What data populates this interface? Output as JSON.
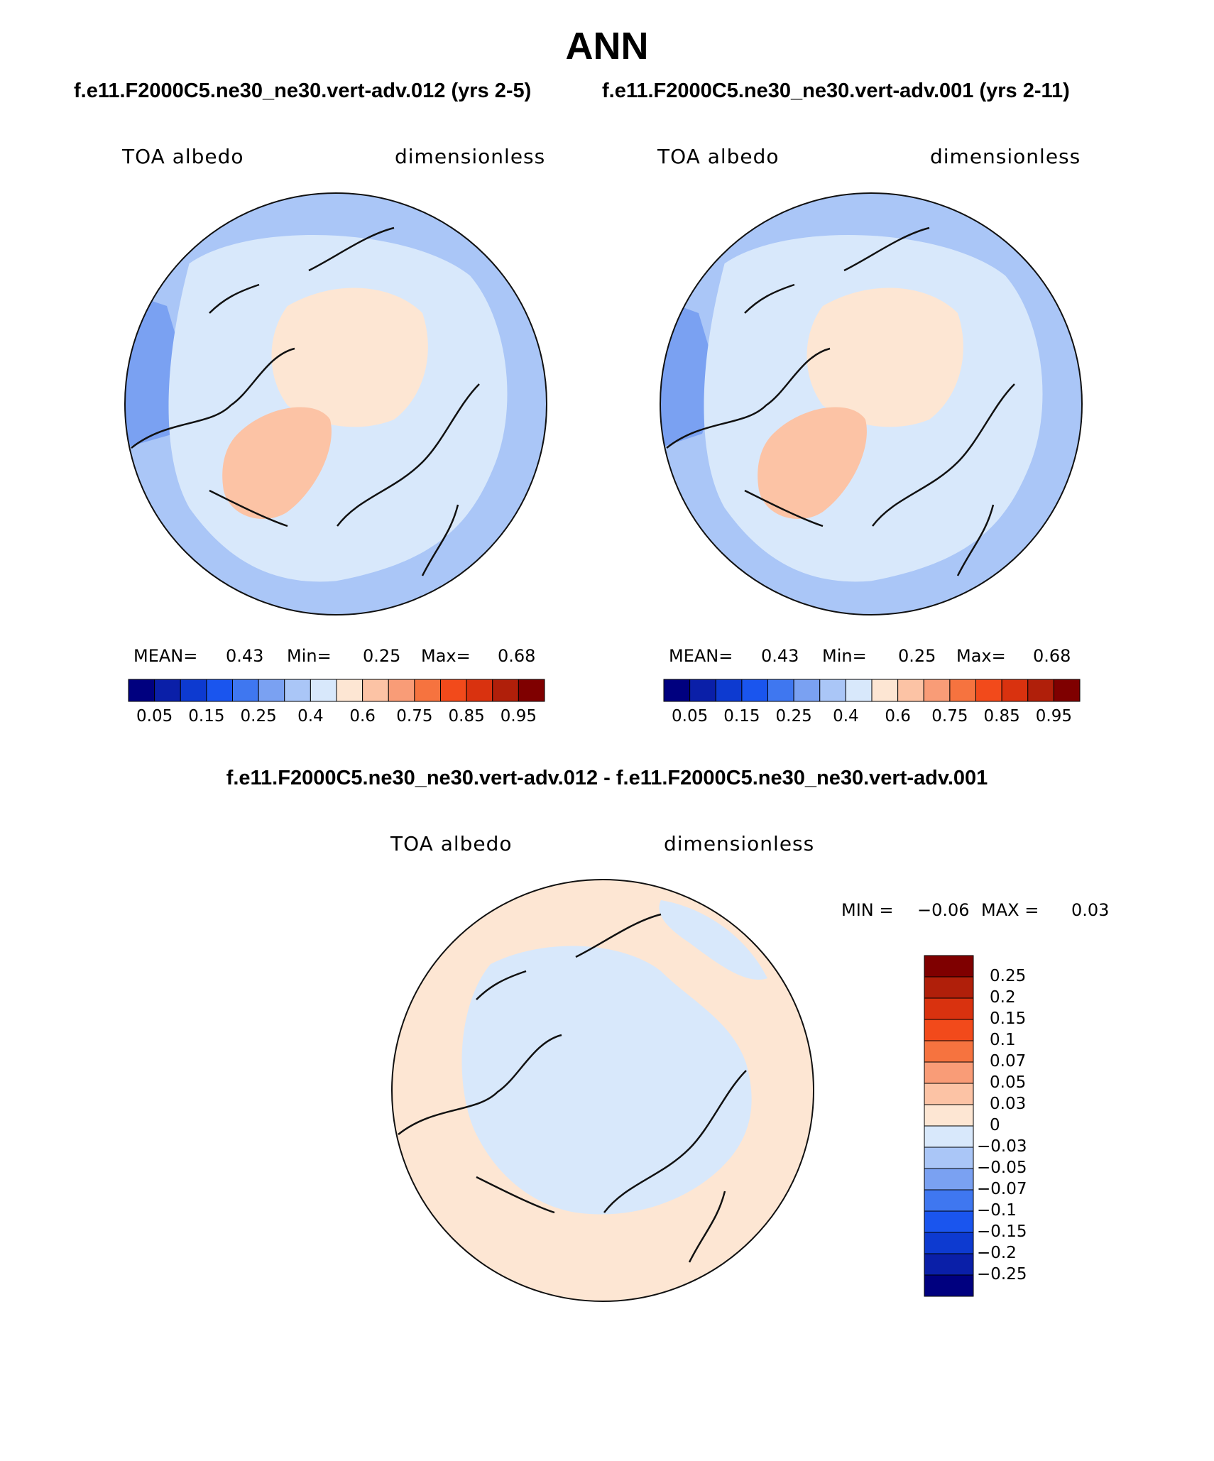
{
  "title": "ANN",
  "top_left": {
    "case_title": "f.e11.F2000C5.ne30_ne30.vert-adv.012 (yrs 2-5)",
    "variable": "TOA albedo",
    "units": "dimensionless",
    "mean_label": "MEAN=",
    "mean_value": "0.43",
    "min_label": "Min=",
    "min_value": "0.25",
    "max_label": "Max=",
    "max_value": "0.68"
  },
  "top_right": {
    "case_title": "f.e11.F2000C5.ne30_ne30.vert-adv.001 (yrs 2-11)",
    "variable": "TOA albedo",
    "units": "dimensionless",
    "mean_label": "MEAN=",
    "mean_value": "0.43",
    "min_label": "Min=",
    "min_value": "0.25",
    "max_label": "Max=",
    "max_value": "0.68"
  },
  "diff": {
    "title": "f.e11.F2000C5.ne30_ne30.vert-adv.012 - f.e11.F2000C5.ne30_ne30.vert-adv.001",
    "variable": "TOA albedo",
    "units": "dimensionless",
    "min_label": "MIN =",
    "min_value": "−0.06",
    "max_label": "MAX =",
    "max_value": "0.03"
  },
  "colorbar_main": {
    "ticks": [
      "0.05",
      "0.15",
      "0.25",
      "0.4",
      "0.6",
      "0.75",
      "0.85",
      "0.95"
    ],
    "colors": [
      "#00007f",
      "#0a1fa8",
      "#0d3ad0",
      "#1a55ee",
      "#3f77f0",
      "#7aa1f2",
      "#aac6f7",
      "#d8e8fb",
      "#fde6d3",
      "#fcc3a5",
      "#f99c77",
      "#f6733f",
      "#f24a1b",
      "#d9320f",
      "#b01f0a",
      "#7f0000"
    ]
  },
  "colorbar_diff": {
    "ticks": [
      "0.25",
      "0.2",
      "0.15",
      "0.1",
      "0.07",
      "0.05",
      "0.03",
      "0",
      "−0.03",
      "−0.05",
      "−0.07",
      "−0.1",
      "−0.15",
      "−0.2",
      "−0.25"
    ],
    "colors": [
      "#7f0000",
      "#b01f0a",
      "#d9320f",
      "#f24a1b",
      "#f6733f",
      "#f99c77",
      "#fcc3a5",
      "#fde6d3",
      "#d8e8fb",
      "#aac6f7",
      "#7aa1f2",
      "#3f77f0",
      "#1a55ee",
      "#0d3ad0",
      "#0a1fa8",
      "#00007f"
    ]
  },
  "map_colors": {
    "ocean": "#aac6f7",
    "ocean_dark": "#7aa1f2",
    "light": "#d8e8fb",
    "warm": "#fde6d3",
    "greenland": "#fcc3a5",
    "coast": "#111111"
  }
}
